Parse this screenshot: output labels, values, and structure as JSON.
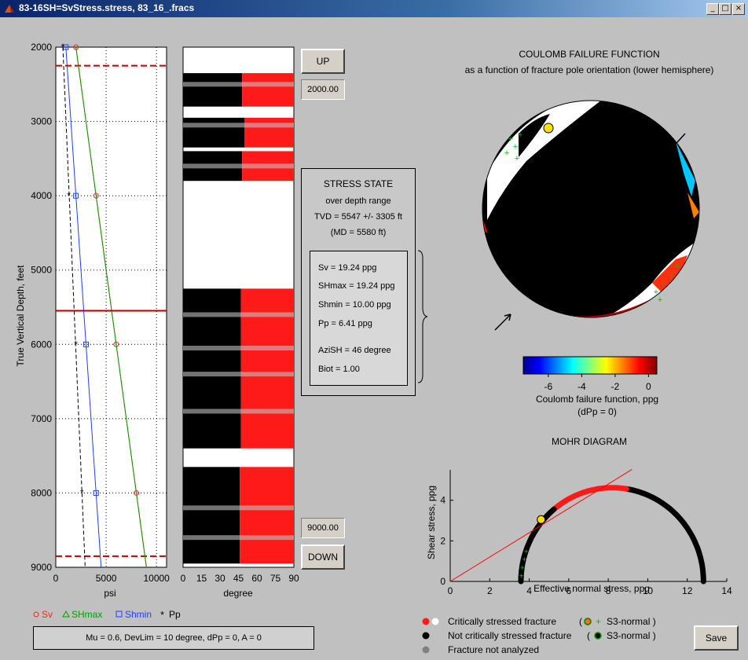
{
  "window": {
    "title": "83-16SH=SvStress.stress, 83_16_.fracs",
    "buttons": {
      "minimize": "_",
      "maximize": "□",
      "close": "×"
    }
  },
  "controls": {
    "up_label": "UP",
    "top_depth": "2000.00",
    "down_label": "DOWN",
    "bottom_depth": "9000.00",
    "save_label": "Save"
  },
  "stress_state": {
    "title": "STRESS STATE",
    "line1": "over depth range",
    "tvd": "TVD = 5547 +/- 3305 ft",
    "md": "(MD = 5580 ft)",
    "sv": "Sv = 19.24 ppg",
    "shmax": "SHmax = 19.24 ppg",
    "shmin": "Shmin = 10.00 ppg",
    "pp": "Pp = 6.41 ppg",
    "azi": "AziSH = 46 degree",
    "biot": "Biot = 1.00"
  },
  "params": "Mu = 0.6,  DevLim = 10 degree,  dPp = 0,  A = 0",
  "stress_legend": {
    "sv": "Sv",
    "shmax": "SHmax",
    "shmin": "Shmin",
    "pp": "Pp"
  },
  "colors": {
    "sv": "#ff2020",
    "shmax": "#00a000",
    "shmin": "#1f3fff",
    "pp": "#000000",
    "critical": "#ff1a1a"
  },
  "fracture_legend": {
    "critical": "Critically stressed fracture",
    "critical_note": "S3-normal )",
    "not_critical": "Not critically stressed fracture",
    "not_critical_note": "S3-normal )",
    "not_analyzed": "Fracture not analyzed"
  },
  "coulomb": {
    "title": "COULOMB FAILURE FUNCTION",
    "subtitle": "as a function of fracture pole orientation (lower hemisphere)",
    "colorbar_label": "Coulomb failure function,  ppg",
    "colorbar_sublabel": "(dPp = 0)",
    "colorbar_ticks": [
      "-6",
      "-4",
      "-2",
      "0"
    ]
  },
  "mohr": {
    "title": "MOHR DIAGRAM",
    "xlabel": "Effective normal stress,  ppg",
    "ylabel": "Shear stress,  ppg",
    "xticks": [
      "0",
      "2",
      "4",
      "6",
      "8",
      "10",
      "12",
      "14"
    ],
    "yticks": [
      "0",
      "2",
      "4"
    ]
  },
  "chart_data": [
    {
      "type": "line",
      "title": "",
      "xlabel": "psi",
      "ylabel": "True Vertical Depth, feet",
      "xlim": [
        0,
        11000
      ],
      "ylim": [
        9000,
        2000
      ],
      "xticks": [
        "0",
        "5000",
        "10000"
      ],
      "yticks": [
        "2000",
        "3000",
        "4000",
        "5000",
        "6000",
        "7000",
        "8000",
        "9000"
      ],
      "series": [
        {
          "name": "Sv",
          "x": [
            2000,
            4000,
            6000,
            8000
          ],
          "y": [
            2000,
            4000,
            6000,
            8000
          ]
        },
        {
          "name": "SHmax",
          "x": [
            2000,
            4000,
            6000,
            8000
          ],
          "y": [
            2000,
            4000,
            6000,
            8000
          ]
        },
        {
          "name": "Shmin",
          "x": [
            1000,
            2000,
            3000,
            4000
          ],
          "y": [
            2000,
            4000,
            6000,
            8000
          ]
        },
        {
          "name": "Pp",
          "x": [
            700,
            1300,
            2000,
            2600
          ],
          "y": [
            2000,
            4000,
            6000,
            8000
          ]
        }
      ],
      "depth_range_lines": [
        2250,
        8850
      ],
      "current_depth": 5547
    },
    {
      "type": "scatter",
      "title": "",
      "xlabel": "degree",
      "xlim": [
        0,
        90
      ],
      "ylim": [
        9000,
        2000
      ],
      "xticks": [
        "0",
        "15",
        "30",
        "45",
        "60",
        "75",
        "90"
      ]
    },
    {
      "type": "scatter",
      "title": "MOHR DIAGRAM",
      "xlabel": "Effective normal stress,  ppg",
      "ylabel": "Shear stress,  ppg",
      "xlim": [
        0,
        14
      ],
      "ylim": [
        0,
        5.5
      ],
      "circle": {
        "center": 8.2,
        "radius": 4.62
      },
      "failure_line_slope": 0.6,
      "highlight_point": [
        4.6,
        3.05
      ]
    }
  ]
}
